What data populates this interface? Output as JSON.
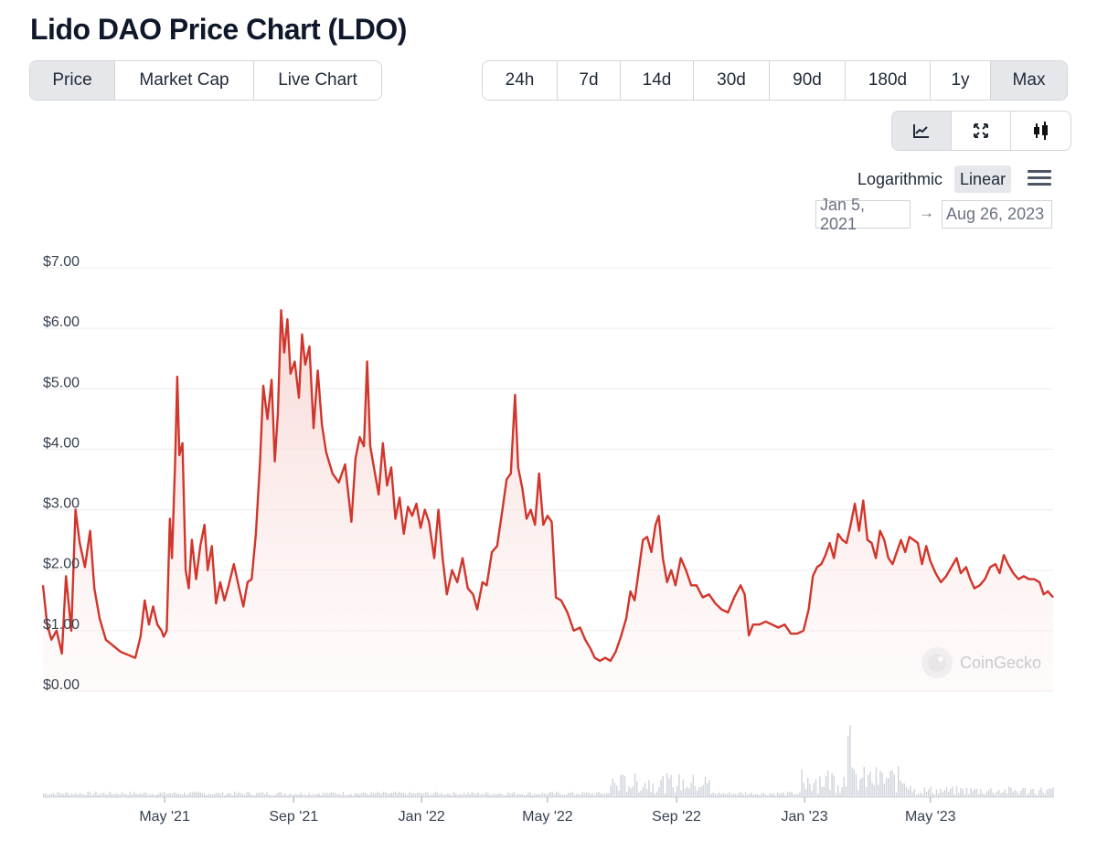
{
  "title": "Lido DAO Price Chart (LDO)",
  "tabs": [
    {
      "label": "Price",
      "active": true
    },
    {
      "label": "Market Cap",
      "active": false
    },
    {
      "label": "Live Chart",
      "active": false
    }
  ],
  "ranges": [
    {
      "label": "24h",
      "active": false
    },
    {
      "label": "7d",
      "active": false
    },
    {
      "label": "14d",
      "active": false
    },
    {
      "label": "30d",
      "active": false
    },
    {
      "label": "90d",
      "active": false
    },
    {
      "label": "180d",
      "active": false
    },
    {
      "label": "1y",
      "active": false
    },
    {
      "label": "Max",
      "active": true
    }
  ],
  "chart_types": [
    {
      "icon": "line-chart-icon",
      "active": true
    },
    {
      "icon": "expand-icon",
      "active": false
    },
    {
      "icon": "candlestick-icon",
      "active": false
    }
  ],
  "scale": {
    "logarithmic": "Logarithmic",
    "linear": "Linear",
    "active": "linear"
  },
  "date_range": {
    "from": "Jan 5, 2021",
    "arrow": "→",
    "to": "Aug 26, 2023"
  },
  "watermark": "CoinGecko",
  "colors": {
    "line": "#d1352b",
    "fill_top": "#f6d5d2",
    "grid": "#ececec",
    "volume": "#cfd3da"
  },
  "chart_data": {
    "type": "line",
    "title": "",
    "xlabel": "",
    "ylabel": "",
    "ylim": [
      0,
      7
    ],
    "xlim": [
      "2021-01-05",
      "2023-08-26"
    ],
    "y_ticks": [
      {
        "value": 0,
        "label": "$0.00"
      },
      {
        "value": 1,
        "label": "$1.00"
      },
      {
        "value": 2,
        "label": "$2.00"
      },
      {
        "value": 3,
        "label": "$3.00"
      },
      {
        "value": 4,
        "label": "$4.00"
      },
      {
        "value": 5,
        "label": "$5.00"
      },
      {
        "value": 6,
        "label": "$6.00"
      },
      {
        "value": 7,
        "label": "$7.00"
      }
    ],
    "x_ticks": [
      {
        "date": "2021-05-01",
        "label": "May '21"
      },
      {
        "date": "2021-09-01",
        "label": "Sep '21"
      },
      {
        "date": "2022-01-01",
        "label": "Jan '22"
      },
      {
        "date": "2022-05-01",
        "label": "May '22"
      },
      {
        "date": "2022-09-01",
        "label": "Sep '22"
      },
      {
        "date": "2023-01-01",
        "label": "Jan '23"
      },
      {
        "date": "2023-05-01",
        "label": "May '23"
      }
    ],
    "series": [
      {
        "name": "Price (USD)",
        "points": [
          [
            "2021-01-05",
            1.75
          ],
          [
            "2021-01-09",
            1.1
          ],
          [
            "2021-01-13",
            0.85
          ],
          [
            "2021-01-18",
            1.0
          ],
          [
            "2021-01-23",
            0.62
          ],
          [
            "2021-01-27",
            1.9
          ],
          [
            "2021-02-01",
            1.0
          ],
          [
            "2021-02-05",
            3.0
          ],
          [
            "2021-02-09",
            2.45
          ],
          [
            "2021-02-14",
            2.05
          ],
          [
            "2021-02-19",
            2.65
          ],
          [
            "2021-02-23",
            1.7
          ],
          [
            "2021-02-28",
            1.2
          ],
          [
            "2021-03-06",
            0.85
          ],
          [
            "2021-03-13",
            0.75
          ],
          [
            "2021-03-20",
            0.65
          ],
          [
            "2021-03-27",
            0.6
          ],
          [
            "2021-04-03",
            0.55
          ],
          [
            "2021-04-08",
            0.9
          ],
          [
            "2021-04-12",
            1.5
          ],
          [
            "2021-04-16",
            1.1
          ],
          [
            "2021-04-20",
            1.4
          ],
          [
            "2021-04-24",
            1.1
          ],
          [
            "2021-04-28",
            1.0
          ],
          [
            "2021-04-30",
            0.9
          ],
          [
            "2021-05-03",
            1.0
          ],
          [
            "2021-05-06",
            2.85
          ],
          [
            "2021-05-08",
            2.2
          ],
          [
            "2021-05-11",
            3.8
          ],
          [
            "2021-05-13",
            5.2
          ],
          [
            "2021-05-15",
            3.9
          ],
          [
            "2021-05-18",
            4.1
          ],
          [
            "2021-05-21",
            2.0
          ],
          [
            "2021-05-24",
            1.7
          ],
          [
            "2021-05-27",
            2.5
          ],
          [
            "2021-05-31",
            1.85
          ],
          [
            "2021-06-04",
            2.4
          ],
          [
            "2021-06-08",
            2.75
          ],
          [
            "2021-06-11",
            2.0
          ],
          [
            "2021-06-15",
            2.4
          ],
          [
            "2021-06-19",
            1.45
          ],
          [
            "2021-06-23",
            1.8
          ],
          [
            "2021-06-27",
            1.5
          ],
          [
            "2021-07-01",
            1.75
          ],
          [
            "2021-07-06",
            2.1
          ],
          [
            "2021-07-11",
            1.7
          ],
          [
            "2021-07-15",
            1.4
          ],
          [
            "2021-07-19",
            1.8
          ],
          [
            "2021-07-23",
            1.85
          ],
          [
            "2021-07-27",
            2.6
          ],
          [
            "2021-07-31",
            3.8
          ],
          [
            "2021-08-03",
            5.05
          ],
          [
            "2021-08-07",
            4.5
          ],
          [
            "2021-08-11",
            5.15
          ],
          [
            "2021-08-14",
            3.8
          ],
          [
            "2021-08-17",
            4.6
          ],
          [
            "2021-08-20",
            6.3
          ],
          [
            "2021-08-23",
            5.6
          ],
          [
            "2021-08-26",
            6.15
          ],
          [
            "2021-08-29",
            5.25
          ],
          [
            "2021-09-02",
            5.45
          ],
          [
            "2021-09-06",
            4.85
          ],
          [
            "2021-09-09",
            5.9
          ],
          [
            "2021-09-12",
            5.4
          ],
          [
            "2021-09-16",
            5.7
          ],
          [
            "2021-09-20",
            4.35
          ],
          [
            "2021-09-24",
            5.3
          ],
          [
            "2021-09-28",
            4.4
          ],
          [
            "2021-10-02",
            3.95
          ],
          [
            "2021-10-08",
            3.6
          ],
          [
            "2021-10-14",
            3.45
          ],
          [
            "2021-10-20",
            3.75
          ],
          [
            "2021-10-26",
            2.8
          ],
          [
            "2021-10-30",
            3.85
          ],
          [
            "2021-11-03",
            4.2
          ],
          [
            "2021-11-07",
            4.05
          ],
          [
            "2021-11-10",
            5.45
          ],
          [
            "2021-11-13",
            4.05
          ],
          [
            "2021-11-17",
            3.65
          ],
          [
            "2021-11-21",
            3.25
          ],
          [
            "2021-11-25",
            4.1
          ],
          [
            "2021-11-29",
            3.4
          ],
          [
            "2021-12-03",
            3.7
          ],
          [
            "2021-12-07",
            2.85
          ],
          [
            "2021-12-11",
            3.2
          ],
          [
            "2021-12-15",
            2.6
          ],
          [
            "2021-12-19",
            3.05
          ],
          [
            "2021-12-23",
            2.9
          ],
          [
            "2021-12-27",
            3.1
          ],
          [
            "2021-12-31",
            2.7
          ],
          [
            "2022-01-04",
            3.0
          ],
          [
            "2022-01-08",
            2.8
          ],
          [
            "2022-01-13",
            2.2
          ],
          [
            "2022-01-17",
            3.0
          ],
          [
            "2022-01-21",
            2.2
          ],
          [
            "2022-01-25",
            1.6
          ],
          [
            "2022-01-30",
            2.0
          ],
          [
            "2022-02-04",
            1.8
          ],
          [
            "2022-02-09",
            2.2
          ],
          [
            "2022-02-14",
            1.7
          ],
          [
            "2022-02-19",
            1.6
          ],
          [
            "2022-02-23",
            1.35
          ],
          [
            "2022-02-28",
            1.8
          ],
          [
            "2022-03-04",
            1.75
          ],
          [
            "2022-03-09",
            2.3
          ],
          [
            "2022-03-14",
            2.4
          ],
          [
            "2022-03-19",
            3.0
          ],
          [
            "2022-03-23",
            3.5
          ],
          [
            "2022-03-27",
            3.6
          ],
          [
            "2022-03-31",
            4.9
          ],
          [
            "2022-04-03",
            3.7
          ],
          [
            "2022-04-07",
            3.35
          ],
          [
            "2022-04-11",
            2.85
          ],
          [
            "2022-04-15",
            3.0
          ],
          [
            "2022-04-19",
            2.75
          ],
          [
            "2022-04-23",
            3.6
          ],
          [
            "2022-04-27",
            2.75
          ],
          [
            "2022-05-01",
            2.9
          ],
          [
            "2022-05-05",
            2.8
          ],
          [
            "2022-05-09",
            1.55
          ],
          [
            "2022-05-14",
            1.5
          ],
          [
            "2022-05-20",
            1.3
          ],
          [
            "2022-05-26",
            1.0
          ],
          [
            "2022-06-01",
            1.05
          ],
          [
            "2022-06-06",
            0.85
          ],
          [
            "2022-06-11",
            0.7
          ],
          [
            "2022-06-15",
            0.55
          ],
          [
            "2022-06-20",
            0.5
          ],
          [
            "2022-06-25",
            0.55
          ],
          [
            "2022-06-30",
            0.5
          ],
          [
            "2022-07-05",
            0.65
          ],
          [
            "2022-07-10",
            0.9
          ],
          [
            "2022-07-15",
            1.2
          ],
          [
            "2022-07-19",
            1.65
          ],
          [
            "2022-07-23",
            1.5
          ],
          [
            "2022-07-27",
            2.0
          ],
          [
            "2022-07-31",
            2.5
          ],
          [
            "2022-08-04",
            2.55
          ],
          [
            "2022-08-08",
            2.3
          ],
          [
            "2022-08-12",
            2.75
          ],
          [
            "2022-08-15",
            2.9
          ],
          [
            "2022-08-19",
            2.2
          ],
          [
            "2022-08-23",
            1.8
          ],
          [
            "2022-08-27",
            2.0
          ],
          [
            "2022-08-31",
            1.75
          ],
          [
            "2022-09-05",
            2.2
          ],
          [
            "2022-09-10",
            2.0
          ],
          [
            "2022-09-15",
            1.75
          ],
          [
            "2022-09-20",
            1.75
          ],
          [
            "2022-09-26",
            1.55
          ],
          [
            "2022-10-02",
            1.6
          ],
          [
            "2022-10-08",
            1.45
          ],
          [
            "2022-10-14",
            1.35
          ],
          [
            "2022-10-20",
            1.3
          ],
          [
            "2022-10-26",
            1.55
          ],
          [
            "2022-11-01",
            1.75
          ],
          [
            "2022-11-05",
            1.6
          ],
          [
            "2022-11-09",
            0.92
          ],
          [
            "2022-11-13",
            1.1
          ],
          [
            "2022-11-19",
            1.1
          ],
          [
            "2022-11-25",
            1.15
          ],
          [
            "2022-12-01",
            1.1
          ],
          [
            "2022-12-07",
            1.05
          ],
          [
            "2022-12-13",
            1.1
          ],
          [
            "2022-12-19",
            0.95
          ],
          [
            "2022-12-25",
            0.95
          ],
          [
            "2022-12-31",
            1.0
          ],
          [
            "2023-01-05",
            1.35
          ],
          [
            "2023-01-09",
            1.9
          ],
          [
            "2023-01-13",
            2.05
          ],
          [
            "2023-01-17",
            2.1
          ],
          [
            "2023-01-21",
            2.25
          ],
          [
            "2023-01-25",
            2.45
          ],
          [
            "2023-01-29",
            2.2
          ],
          [
            "2023-02-02",
            2.6
          ],
          [
            "2023-02-06",
            2.5
          ],
          [
            "2023-02-10",
            2.45
          ],
          [
            "2023-02-14",
            2.75
          ],
          [
            "2023-02-18",
            3.1
          ],
          [
            "2023-02-22",
            2.65
          ],
          [
            "2023-02-26",
            3.15
          ],
          [
            "2023-03-02",
            2.5
          ],
          [
            "2023-03-06",
            2.45
          ],
          [
            "2023-03-10",
            2.2
          ],
          [
            "2023-03-14",
            2.65
          ],
          [
            "2023-03-18",
            2.5
          ],
          [
            "2023-03-22",
            2.2
          ],
          [
            "2023-03-26",
            2.1
          ],
          [
            "2023-03-30",
            2.3
          ],
          [
            "2023-04-03",
            2.5
          ],
          [
            "2023-04-07",
            2.3
          ],
          [
            "2023-04-11",
            2.55
          ],
          [
            "2023-04-15",
            2.5
          ],
          [
            "2023-04-19",
            2.45
          ],
          [
            "2023-04-23",
            2.1
          ],
          [
            "2023-04-27",
            2.4
          ],
          [
            "2023-05-01",
            2.15
          ],
          [
            "2023-05-06",
            1.95
          ],
          [
            "2023-05-11",
            1.8
          ],
          [
            "2023-05-16",
            1.9
          ],
          [
            "2023-05-21",
            2.05
          ],
          [
            "2023-05-26",
            2.2
          ],
          [
            "2023-05-30",
            1.95
          ],
          [
            "2023-06-04",
            2.05
          ],
          [
            "2023-06-08",
            1.85
          ],
          [
            "2023-06-12",
            1.7
          ],
          [
            "2023-06-17",
            1.75
          ],
          [
            "2023-06-22",
            1.85
          ],
          [
            "2023-06-27",
            2.05
          ],
          [
            "2023-07-02",
            2.1
          ],
          [
            "2023-07-06",
            1.95
          ],
          [
            "2023-07-10",
            2.25
          ],
          [
            "2023-07-14",
            2.1
          ],
          [
            "2023-07-19",
            1.95
          ],
          [
            "2023-07-24",
            1.85
          ],
          [
            "2023-07-29",
            1.9
          ],
          [
            "2023-08-03",
            1.85
          ],
          [
            "2023-08-08",
            1.85
          ],
          [
            "2023-08-13",
            1.8
          ],
          [
            "2023-08-17",
            1.6
          ],
          [
            "2023-08-21",
            1.65
          ],
          [
            "2023-08-26",
            1.55
          ]
        ]
      }
    ]
  }
}
